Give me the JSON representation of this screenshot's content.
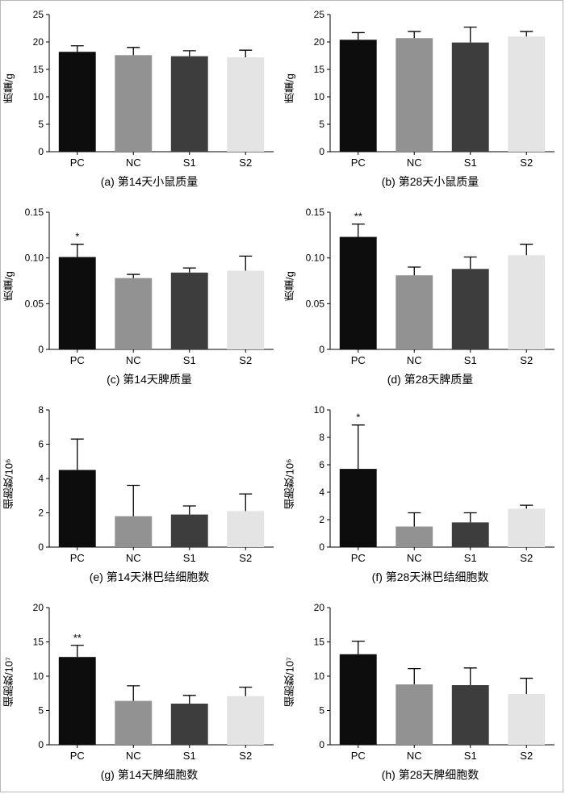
{
  "bar_colors": [
    "#0d0d0d",
    "#929292",
    "#3d3d3d",
    "#e4e4e4"
  ],
  "error_bar_color": "#000000",
  "chart_data": [
    {
      "type": "bar",
      "caption": "(a) 第14天小鼠质量",
      "ylabel": "质量/g",
      "categories": [
        "PC",
        "NC",
        "S1",
        "S2"
      ],
      "values": [
        18.2,
        17.6,
        17.4,
        17.2
      ],
      "errors": [
        1.1,
        1.4,
        1.0,
        1.3
      ],
      "annotations": [
        "",
        "",
        "",
        ""
      ],
      "ylim": [
        0,
        25
      ],
      "yticks": [
        0,
        5,
        10,
        15,
        20,
        25
      ],
      "ytick_labels": [
        "0",
        "5",
        "10",
        "15",
        "20",
        "25"
      ]
    },
    {
      "type": "bar",
      "caption": "(b) 第28天小鼠质量",
      "ylabel": "质量/g",
      "categories": [
        "PC",
        "NC",
        "S1",
        "S2"
      ],
      "values": [
        20.4,
        20.7,
        19.9,
        21.0
      ],
      "errors": [
        1.3,
        1.2,
        2.8,
        0.9
      ],
      "annotations": [
        "",
        "",
        "",
        ""
      ],
      "ylim": [
        0,
        25
      ],
      "yticks": [
        0,
        5,
        10,
        15,
        20,
        25
      ],
      "ytick_labels": [
        "0",
        "5",
        "10",
        "15",
        "20",
        "25"
      ]
    },
    {
      "type": "bar",
      "caption": "(c) 第14天脾质量",
      "ylabel": "质量/g",
      "categories": [
        "PC",
        "NC",
        "S1",
        "S2"
      ],
      "values": [
        0.101,
        0.078,
        0.084,
        0.086
      ],
      "errors": [
        0.014,
        0.004,
        0.005,
        0.016
      ],
      "annotations": [
        "*",
        "",
        "",
        ""
      ],
      "ylim": [
        0,
        0.15
      ],
      "yticks": [
        0,
        0.05,
        0.1,
        0.15
      ],
      "ytick_labels": [
        "0",
        "0.05",
        "0.10",
        "0.15"
      ]
    },
    {
      "type": "bar",
      "caption": "(d) 第28天脾质量",
      "ylabel": "质量/g",
      "categories": [
        "PC",
        "NC",
        "S1",
        "S2"
      ],
      "values": [
        0.123,
        0.081,
        0.088,
        0.103
      ],
      "errors": [
        0.014,
        0.009,
        0.013,
        0.012
      ],
      "annotations": [
        "**",
        "",
        "",
        ""
      ],
      "ylim": [
        0,
        0.15
      ],
      "yticks": [
        0,
        0.05,
        0.1,
        0.15
      ],
      "ytick_labels": [
        "0",
        "0.05",
        "0.10",
        "0.15"
      ]
    },
    {
      "type": "bar",
      "caption": "(e) 第14天淋巴结细胞数",
      "ylabel": "细胞数/10⁶",
      "categories": [
        "PC",
        "NC",
        "S1",
        "S2"
      ],
      "values": [
        4.5,
        1.8,
        1.9,
        2.1
      ],
      "errors": [
        1.8,
        1.8,
        0.5,
        1.0
      ],
      "annotations": [
        "",
        "",
        "",
        ""
      ],
      "ylim": [
        0,
        8
      ],
      "yticks": [
        0,
        2,
        4,
        6,
        8
      ],
      "ytick_labels": [
        "0",
        "2",
        "4",
        "6",
        "8"
      ]
    },
    {
      "type": "bar",
      "caption": "(f) 第28天淋巴结细胞数",
      "ylabel": "细胞数/10⁶",
      "categories": [
        "PC",
        "NC",
        "S1",
        "S2"
      ],
      "values": [
        5.7,
        1.5,
        1.8,
        2.8
      ],
      "errors": [
        3.2,
        1.0,
        0.7,
        0.25
      ],
      "annotations": [
        "*",
        "",
        "",
        ""
      ],
      "ylim": [
        0,
        10
      ],
      "yticks": [
        0,
        2,
        4,
        6,
        8,
        10
      ],
      "ytick_labels": [
        "0",
        "2",
        "4",
        "6",
        "8",
        "10"
      ]
    },
    {
      "type": "bar",
      "caption": "(g) 第14天脾细胞数",
      "ylabel": "细胞数/10⁷",
      "categories": [
        "PC",
        "NC",
        "S1",
        "S2"
      ],
      "values": [
        12.8,
        6.4,
        6.0,
        7.1
      ],
      "errors": [
        1.7,
        2.2,
        1.2,
        1.3
      ],
      "annotations": [
        "**",
        "",
        "",
        ""
      ],
      "ylim": [
        0,
        20
      ],
      "yticks": [
        0,
        5,
        10,
        15,
        20
      ],
      "ytick_labels": [
        "0",
        "5",
        "10",
        "15",
        "20"
      ]
    },
    {
      "type": "bar",
      "caption": "(h) 第28天脾细胞数",
      "ylabel": "细胞数/10⁷",
      "categories": [
        "PC",
        "NC",
        "S1",
        "S2"
      ],
      "values": [
        13.2,
        8.8,
        8.7,
        7.4
      ],
      "errors": [
        1.9,
        2.3,
        2.5,
        2.3
      ],
      "annotations": [
        "",
        "",
        "",
        ""
      ],
      "ylim": [
        0,
        20
      ],
      "yticks": [
        0,
        5,
        10,
        15,
        20
      ],
      "ytick_labels": [
        "0",
        "5",
        "10",
        "15",
        "20"
      ]
    }
  ]
}
